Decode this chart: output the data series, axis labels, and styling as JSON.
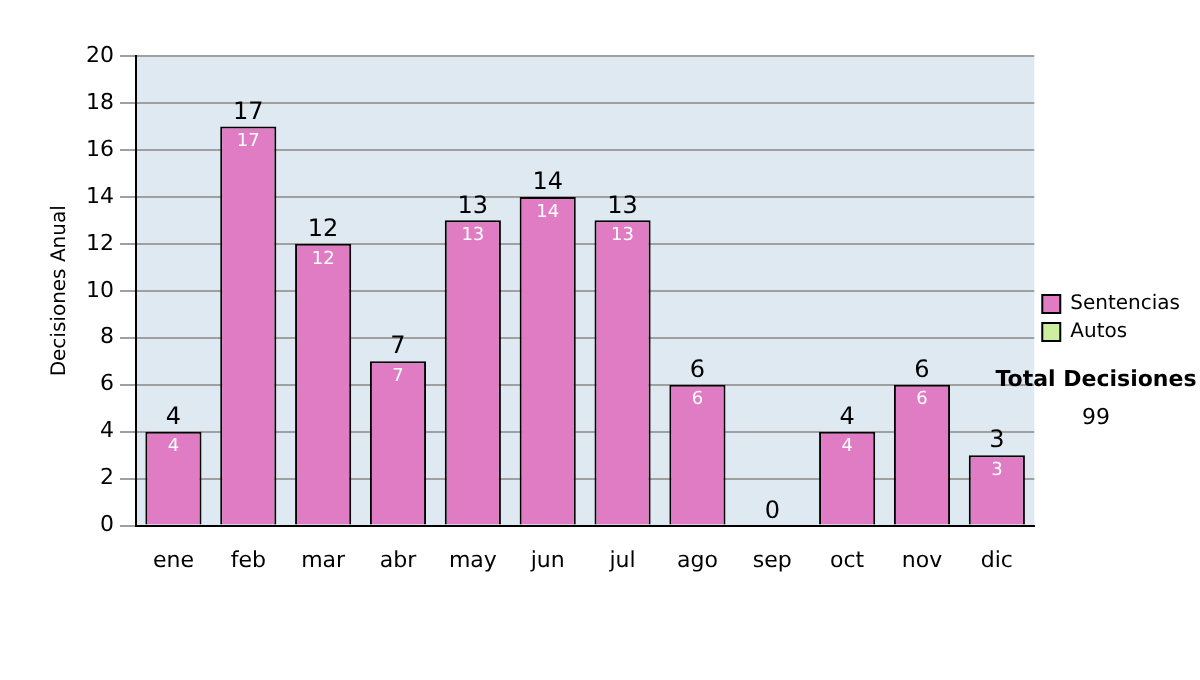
{
  "chart_data": {
    "type": "bar",
    "stacked": true,
    "ylabel": "Decisiones Anual",
    "categories": [
      "ene",
      "feb",
      "mar",
      "abr",
      "may",
      "jun",
      "jul",
      "ago",
      "sep",
      "oct",
      "nov",
      "dic"
    ],
    "series": [
      {
        "name": "Sentencias",
        "color": "#e07cc4",
        "values": [
          4,
          17,
          12,
          7,
          13,
          14,
          13,
          6,
          0,
          4,
          6,
          3
        ],
        "value_labels": [
          "4",
          "17",
          "12",
          "7",
          "13",
          "14",
          "13",
          "6",
          null,
          "4",
          "6",
          "3"
        ]
      },
      {
        "name": "Autos",
        "color": "#ccf0a0",
        "values": [
          0,
          0,
          0,
          0,
          0,
          0,
          0,
          0,
          0,
          0,
          0,
          0
        ]
      }
    ],
    "totals": [
      "4",
      "17",
      "12",
      "7",
      "13",
      "14",
      "13",
      "6",
      "0",
      "4",
      "6",
      "3"
    ],
    "ylim": [
      0,
      20
    ],
    "yticks": [
      0,
      2,
      4,
      6,
      8,
      10,
      12,
      14,
      16,
      18,
      20
    ],
    "grid": "y",
    "legend": "right",
    "annotations": [
      "Total Decisiones",
      "99"
    ]
  }
}
